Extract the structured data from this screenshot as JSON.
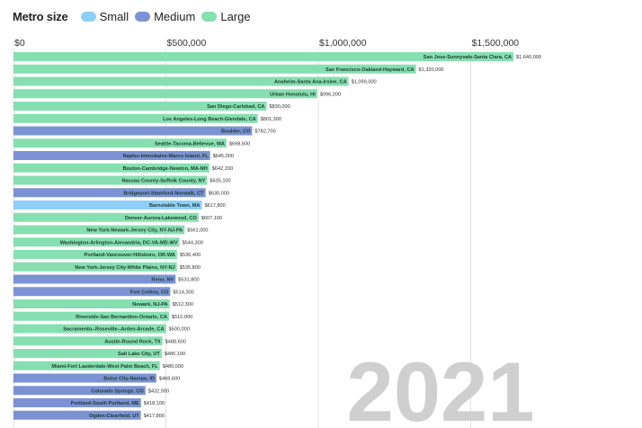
{
  "legend": {
    "title": "Metro size",
    "items": [
      {
        "key": "small",
        "label": "Small",
        "color": "#8dcff8"
      },
      {
        "key": "medium",
        "label": "Medium",
        "color": "#7b93d4"
      },
      {
        "key": "large",
        "label": "Large",
        "color": "#86dfb0"
      }
    ]
  },
  "year": "2021",
  "chart_data": {
    "type": "bar",
    "orientation": "horizontal",
    "title": "",
    "xlabel": "",
    "ylabel": "",
    "xlim": [
      0,
      1690000
    ],
    "ticks": [
      {
        "value": 0,
        "label": "$0"
      },
      {
        "value": 500000,
        "label": "$500,000"
      },
      {
        "value": 1000000,
        "label": "$1,000,000"
      },
      {
        "value": 1500000,
        "label": "$1,500,000"
      }
    ],
    "grid": true,
    "legend_position": "top-left",
    "bars": [
      {
        "name": "San Jose-Sunnyvale-Santa Clara, CA",
        "value": 1640000,
        "label": "$1,640,000",
        "size": "large"
      },
      {
        "name": "San Francisco-Oakland-Hayward, CA",
        "value": 1320000,
        "label": "$1,320,000",
        "size": "large"
      },
      {
        "name": "Anaheim-Santa Ana-Irvine, CA",
        "value": 1099000,
        "label": "$1,099,000",
        "size": "large"
      },
      {
        "name": "Urban Honolulu, HI",
        "value": 996200,
        "label": "$996,200",
        "size": "large"
      },
      {
        "name": "San Diego-Carlsbad, CA",
        "value": 830000,
        "label": "$830,000",
        "size": "large"
      },
      {
        "name": "Los Angeles-Long Beach-Glendale, CA",
        "value": 801300,
        "label": "$801,300",
        "size": "large"
      },
      {
        "name": "Boulder, CO",
        "value": 782700,
        "label": "$782,700",
        "size": "medium"
      },
      {
        "name": "Seattle-Tacoma-Bellevue, WA",
        "value": 698600,
        "label": "$698,600",
        "size": "large"
      },
      {
        "name": "Naples-Immokalee-Marco Island, FL",
        "value": 645000,
        "label": "$645,000",
        "size": "medium"
      },
      {
        "name": "Boston-Cambridge-Newton, MA-NH",
        "value": 642200,
        "label": "$642,200",
        "size": "large"
      },
      {
        "name": "Nassau County-Suffolk County, NY",
        "value": 635100,
        "label": "$635,100",
        "size": "large"
      },
      {
        "name": "Bridgeport-Stamford-Norwalk, CT",
        "value": 630000,
        "label": "$630,000",
        "size": "medium"
      },
      {
        "name": "Barnstable Town, MA",
        "value": 617800,
        "label": "$617,800",
        "size": "small"
      },
      {
        "name": "Denver-Aurora-Lakewood, CO",
        "value": 607100,
        "label": "$607,100",
        "size": "large"
      },
      {
        "name": "New York-Newark-Jersey City, NY-NJ-PA",
        "value": 561000,
        "label": "$561,000",
        "size": "large"
      },
      {
        "name": "Washington-Arlington-Alexandria, DC-VA-MD-WV",
        "value": 544300,
        "label": "$544,300",
        "size": "large"
      },
      {
        "name": "Portland-Vancouver-Hillsboro, OR-WA",
        "value": 536400,
        "label": "$536,400",
        "size": "large"
      },
      {
        "name": "New York-Jersey City-White Plains, NY-NJ",
        "value": 535800,
        "label": "$535,800",
        "size": "large"
      },
      {
        "name": "Reno, NV",
        "value": 531800,
        "label": "$531,800",
        "size": "medium"
      },
      {
        "name": "Fort Collins, CO",
        "value": 514300,
        "label": "$514,300",
        "size": "medium"
      },
      {
        "name": "Newark, NJ-PA",
        "value": 512300,
        "label": "$512,300",
        "size": "large"
      },
      {
        "name": "Riverside-San Bernardino-Ontario, CA",
        "value": 510000,
        "label": "$510,000",
        "size": "large"
      },
      {
        "name": "Sacramento--Roseville--Arden-Arcade, CA",
        "value": 500000,
        "label": "$500,000",
        "size": "large"
      },
      {
        "name": "Austin-Round Rock, TX",
        "value": 488600,
        "label": "$488,600",
        "size": "large"
      },
      {
        "name": "Salt Lake City, UT",
        "value": 486100,
        "label": "$486,100",
        "size": "large"
      },
      {
        "name": "Miami-Fort Lauderdale-West Palm Beach, FL",
        "value": 480000,
        "label": "$480,000",
        "size": "large"
      },
      {
        "name": "Boise City-Nampa, ID",
        "value": 468600,
        "label": "$468,600",
        "size": "medium"
      },
      {
        "name": "Colorado Springs, CO",
        "value": 432900,
        "label": "$432,900",
        "size": "medium"
      },
      {
        "name": "Portland-South Portland, ME",
        "value": 418100,
        "label": "$418,100",
        "size": "medium"
      },
      {
        "name": "Ogden-Clearfield, UT",
        "value": 417800,
        "label": "$417,800",
        "size": "medium"
      }
    ]
  }
}
